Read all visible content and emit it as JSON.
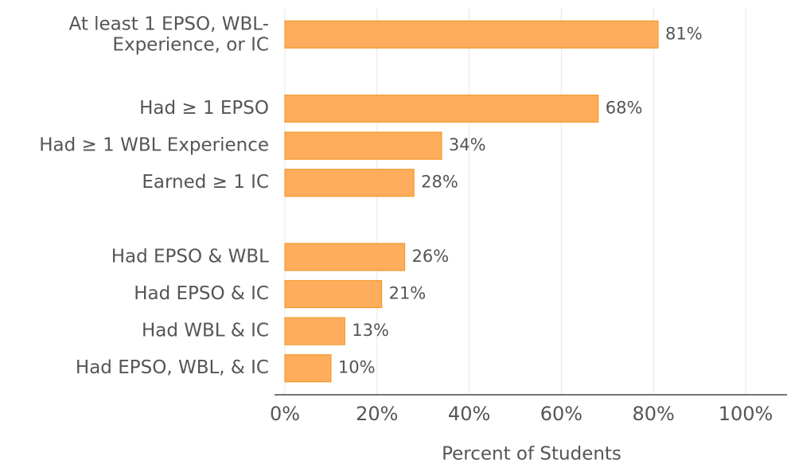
{
  "chart_data": {
    "type": "bar",
    "orientation": "horizontal",
    "x_label": "Percent of Students",
    "categories": [
      "At least 1 EPSO, WBL-\nExperience, or IC",
      null,
      "Had ≥ 1 EPSO",
      "Had ≥ 1 WBL Experience",
      "Earned ≥ 1 IC",
      null,
      "Had EPSO & WBL",
      "Had EPSO & IC",
      "Had WBL & IC",
      "Had EPSO, WBL, & IC"
    ],
    "values": [
      81,
      null,
      68,
      34,
      28,
      null,
      26,
      21,
      13,
      10
    ],
    "value_labels": [
      "81%",
      null,
      "68%",
      "34%",
      "28%",
      null,
      "26%",
      "21%",
      "13%",
      "10%"
    ],
    "color": "#fdad5c",
    "edge_color": "#f39a2e",
    "xlim": [
      0,
      100
    ],
    "xticks": [
      {
        "value": 0,
        "label": "0%"
      },
      {
        "value": 20,
        "label": "20%"
      },
      {
        "value": 40,
        "label": "40%"
      },
      {
        "value": 60,
        "label": "60%"
      },
      {
        "value": 80,
        "label": "80%"
      },
      {
        "value": 100,
        "label": "100%"
      }
    ],
    "grid": true
  }
}
